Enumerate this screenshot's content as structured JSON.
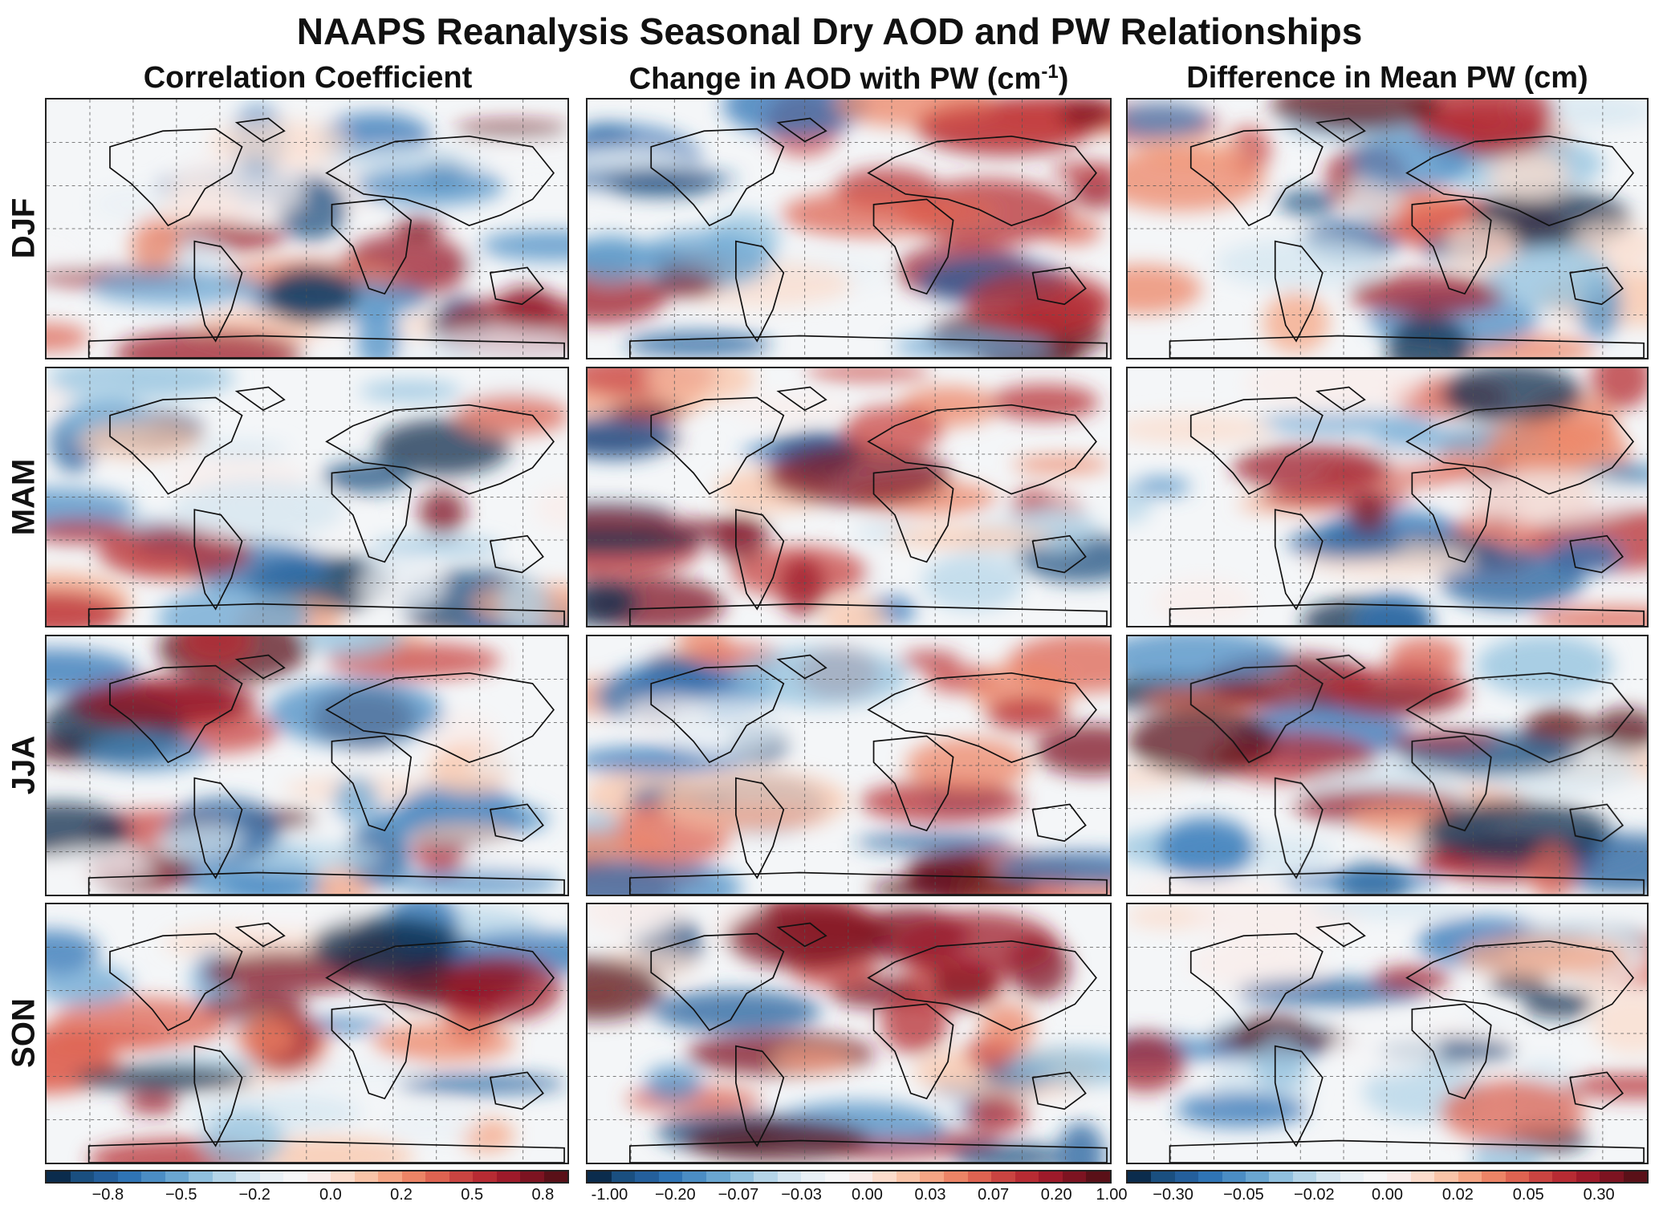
{
  "title": "NAAPS Reanalysis Seasonal Dry AOD and PW Relationships",
  "columns": [
    {
      "label": "Correlation Coefficient",
      "sup": ""
    },
    {
      "label": "Change in AOD with PW (cm",
      "sup": "-1",
      "suffix": ")"
    },
    {
      "label": "Difference in Mean PW (cm)",
      "sup": ""
    }
  ],
  "rows": [
    "DJF",
    "MAM",
    "JJA",
    "SON"
  ],
  "colormap": [
    "#0b2c4d",
    "#1a4f80",
    "#245f9c",
    "#2f74b5",
    "#4b8dc4",
    "#6aa6d1",
    "#90c0de",
    "#b5d5e8",
    "#d4e5f0",
    "#e9f0f5",
    "#f6f6f7",
    "#f9ecea",
    "#fbdccc",
    "#f9c4a8",
    "#f5a584",
    "#ec8466",
    "#de6351",
    "#ca4441",
    "#b72b33",
    "#9e1a2a",
    "#7d1321",
    "#5a1018"
  ],
  "colorbars": [
    {
      "ticks": [
        "−0.8",
        "−0.5",
        "−0.2",
        "0.0",
        "0.2",
        "0.5",
        "0.8"
      ]
    },
    {
      "ticks": [
        "-1.00",
        "−0.20",
        "−0.07",
        "−0.03",
        "0.00",
        "0.03",
        "0.07",
        "0.20",
        "1.00"
      ]
    },
    {
      "ticks": [
        "−0.30",
        "−0.05",
        "−0.02",
        "0.00",
        "0.02",
        "0.05",
        "0.30"
      ]
    }
  ]
}
